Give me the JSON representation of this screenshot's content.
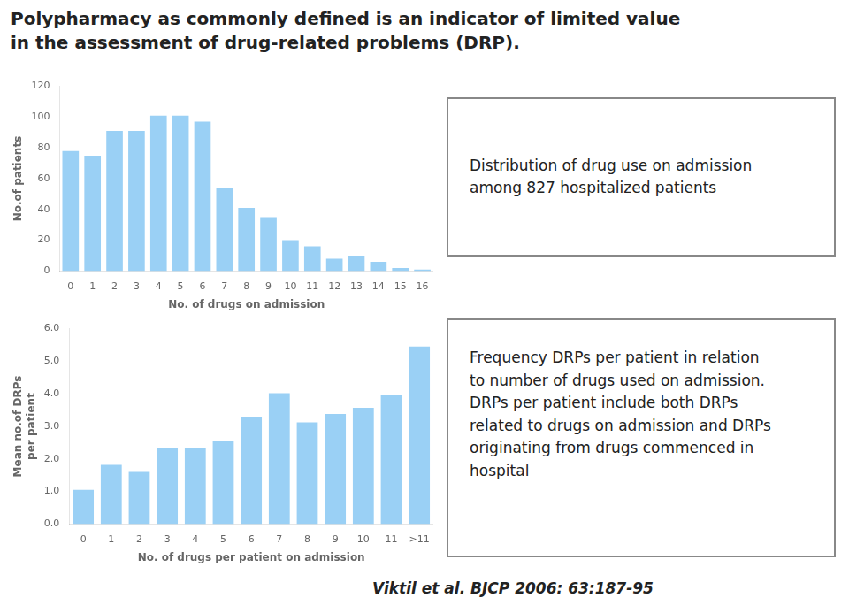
{
  "title": "Polypharmacy as commonly defined is an indicator of limited value\nin the assessment of drug-related problems (DRP).",
  "annotations": [
    "Viktil et al. BJCP 2006: 63:187-95"
  ],
  "chart_data": [
    {
      "type": "bar",
      "categories": [
        "0",
        "1",
        "2",
        "3",
        "4",
        "5",
        "6",
        "7",
        "8",
        "9",
        "10",
        "11",
        "12",
        "13",
        "14",
        "15",
        "16"
      ],
      "values": [
        78,
        75,
        91,
        91,
        101,
        101,
        97,
        54,
        41,
        35,
        20,
        16,
        8,
        10,
        6,
        2,
        1
      ],
      "y_label": "No.of patients",
      "x_label": "No. of drugs on admission",
      "ylim": [
        0,
        120
      ],
      "yticks": [
        0,
        20,
        40,
        60,
        80,
        100,
        120
      ],
      "grid": false,
      "annotations": [
        "Distribution of drug use on admission\namong 827 hospitalized patients"
      ]
    },
    {
      "type": "bar",
      "categories": [
        "0",
        "1",
        "2",
        "3",
        "4",
        "5",
        "6",
        "7",
        "8",
        "9",
        "10",
        "11",
        ">11"
      ],
      "values": [
        1.05,
        1.82,
        1.6,
        2.32,
        2.32,
        2.55,
        3.3,
        4.02,
        3.12,
        3.38,
        3.57,
        3.95,
        5.45
      ],
      "y_label": "Mean no.of DRPs\nper patient",
      "x_label": "No. of drugs per patient on admission",
      "ylim": [
        0,
        6
      ],
      "yticks": [
        {
          "value": 0,
          "label": "0.0"
        },
        {
          "value": 1,
          "label": "1.0"
        },
        {
          "value": 2,
          "label": "2.0"
        },
        {
          "value": 3,
          "label": "3.0"
        },
        {
          "value": 4,
          "label": "4.0"
        },
        {
          "value": 5,
          "label": "5.0"
        },
        {
          "value": 6,
          "label": "6.0"
        }
      ],
      "grid": false,
      "annotations": [
        "Frequency DRPs per patient in relation\nto number of drugs used on admission.\nDRPs per patient include both DRPs\nrelated to drugs on admission and DRPs\noriginating from drugs commenced in\nhospital"
      ]
    }
  ]
}
